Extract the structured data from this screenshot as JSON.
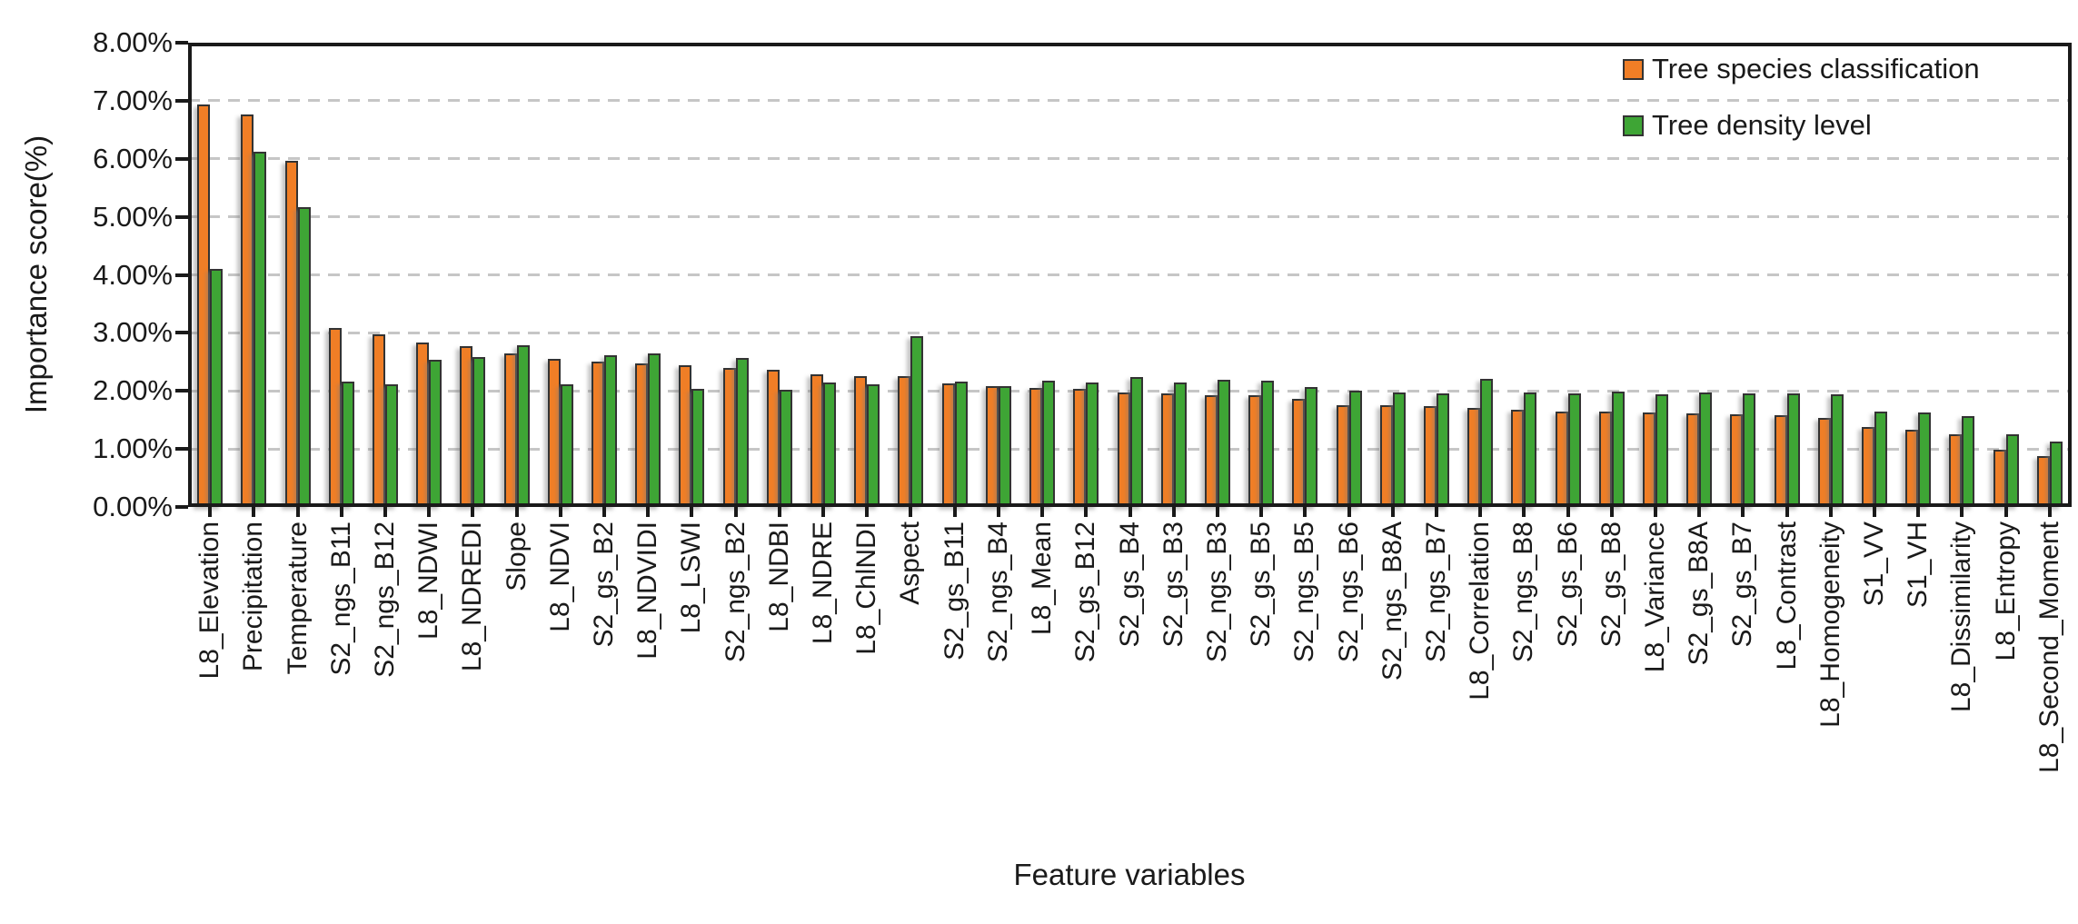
{
  "figure": {
    "background": "#ffffff",
    "text_color": "#1a1a1a",
    "gridline_color": "#c6c6c6",
    "bar_outline_color": "#333333"
  },
  "chart_data": {
    "type": "bar",
    "title": "",
    "xlabel": "Feature variables",
    "ylabel": "Importance score(%)",
    "ylim": [
      0,
      8
    ],
    "ytick_step": 1,
    "ytick_labels": [
      "0.00%",
      "1.00%",
      "2.00%",
      "3.00%",
      "4.00%",
      "5.00%",
      "6.00%",
      "7.00%",
      "8.00%"
    ],
    "grid": "horizontal dashed at 1.00%–7.00%",
    "legend_position": "top-right inside plot",
    "categories": [
      "L8_Elevation",
      "Precipitation",
      "Temperature",
      "S2_ngs_B11",
      "S2_ngs_B12",
      "L8_NDWI",
      "L8_NDREDI",
      "Slope",
      "L8_NDVI",
      "S2_gs_B2",
      "L8_NDVIDI",
      "L8_LSWI",
      "S2_ngs_B2",
      "L8_NDBI",
      "L8_NDRE",
      "L8_ChlNDI",
      "Aspect",
      "S2_gs_B11",
      "S2_ngs_B4",
      "L8_Mean",
      "S2_gs_B12",
      "S2_gs_B4",
      "S2_gs_B3",
      "S2_ngs_B3",
      "S2_gs_B5",
      "S2_ngs_B5",
      "S2_ngs_B6",
      "S2_ngs_B8A",
      "S2_ngs_B7",
      "L8_Correlation",
      "S2_ngs_B8",
      "S2_gs_B6",
      "S2_gs_B8",
      "L8_Variance",
      "S2_gs_B8A",
      "S2_gs_B7",
      "L8_Contrast",
      "L8_Homogeneity",
      "S1_VV",
      "S1_VH",
      "L8_Dissimilarity",
      "L8_Entropy",
      "L8_Second_Moment"
    ],
    "series": [
      {
        "name": "Tree species classification",
        "color": "#F07E26",
        "values": [
          6.93,
          6.76,
          5.97,
          3.09,
          2.97,
          2.84,
          2.77,
          2.64,
          2.55,
          2.5,
          2.48,
          2.44,
          2.39,
          2.36,
          2.28,
          2.25,
          2.26,
          2.13,
          2.09,
          2.05,
          2.03,
          1.97,
          1.95,
          1.93,
          1.92,
          1.87,
          1.76,
          1.76,
          1.74,
          1.7,
          1.67,
          1.65,
          1.65,
          1.63,
          1.62,
          1.6,
          1.58,
          1.54,
          1.37,
          1.33,
          1.25,
          0.98,
          0.88
        ]
      },
      {
        "name": "Tree density level",
        "color": "#3EA535",
        "values": [
          4.1,
          6.12,
          5.17,
          2.16,
          2.12,
          2.53,
          2.59,
          2.78,
          2.12,
          2.62,
          2.65,
          2.03,
          2.56,
          2.02,
          2.14,
          2.11,
          2.95,
          2.16,
          2.08,
          2.18,
          2.14,
          2.24,
          2.15,
          2.19,
          2.17,
          2.07,
          2.0,
          1.98,
          1.96,
          2.2,
          1.97,
          1.95,
          1.99,
          1.94,
          1.98,
          1.95,
          1.95,
          1.94,
          1.65,
          1.63,
          1.57,
          1.25,
          1.13
        ]
      }
    ]
  }
}
